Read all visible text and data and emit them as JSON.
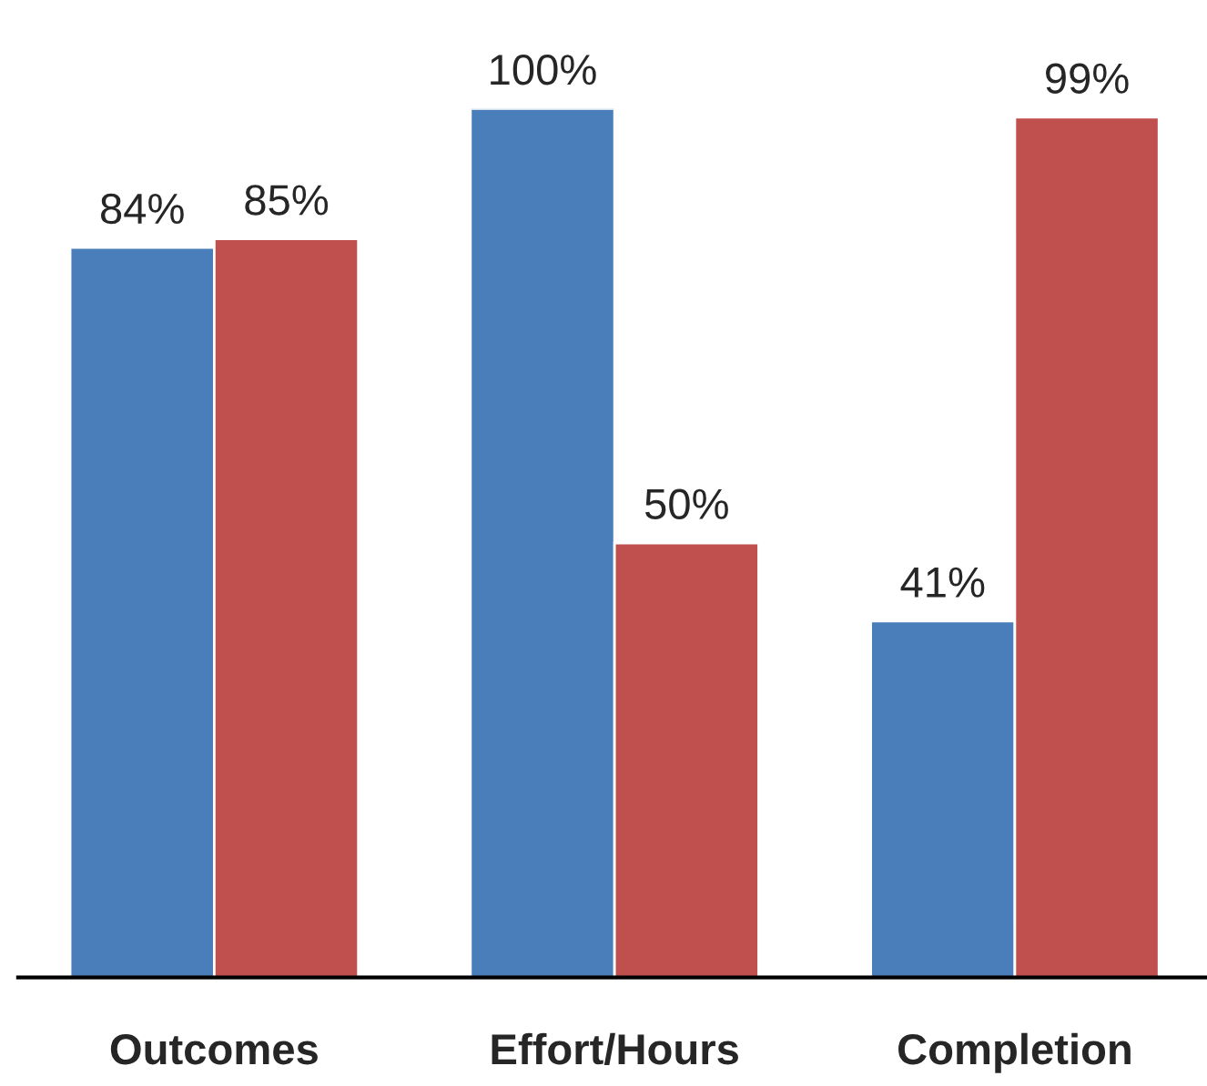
{
  "chart_data": {
    "type": "bar",
    "categories": [
      "Outcomes",
      "Effort/Hours",
      "Completion"
    ],
    "series": [
      {
        "color": "#4a7ebb",
        "values": [
          84,
          100,
          41
        ],
        "value_labels": [
          "84%",
          "100%",
          "41%"
        ]
      },
      {
        "color": "#c0504d",
        "values": [
          85,
          50,
          99
        ],
        "value_labels": [
          "85%",
          "50%",
          "99%"
        ]
      }
    ],
    "tick_labels": "x",
    "grid": false,
    "legend": false
  }
}
